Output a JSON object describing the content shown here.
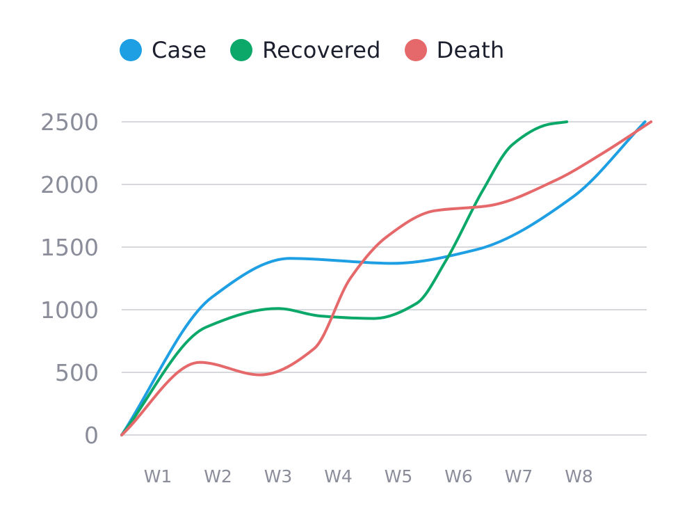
{
  "chart_data": {
    "type": "line",
    "title": "",
    "xlabel": "",
    "ylabel": "",
    "categories": [
      "W1",
      "W2",
      "W3",
      "W4",
      "W5",
      "W6",
      "W7",
      "W8"
    ],
    "ylim": [
      0,
      2500
    ],
    "yticks": [
      0,
      500,
      1000,
      1500,
      2000,
      2500
    ],
    "grid": true,
    "legend_position": "top",
    "smooth": true,
    "series": [
      {
        "name": "Case",
        "color": "#1e9fe3",
        "x": [
          0,
          1.5,
          2.8,
          4.5,
          5.9,
          7.5,
          8.7
        ],
        "y": [
          0,
          1100,
          1410,
          1370,
          1480,
          1900,
          2500
        ]
      },
      {
        "name": "Recovered",
        "color": "#0ba86a",
        "x": [
          0,
          1.4,
          2.6,
          3.3,
          4.2,
          4.9,
          5.4,
          6.0,
          6.5,
          7.1,
          7.4
        ],
        "y": [
          0,
          860,
          1010,
          950,
          930,
          1050,
          1400,
          1950,
          2320,
          2480,
          2500
        ]
      },
      {
        "name": "Death",
        "color": "#e5696a",
        "x": [
          0,
          1.3,
          2.3,
          3.2,
          3.8,
          4.4,
          5.2,
          6.1,
          7.2,
          8.0,
          8.8
        ],
        "y": [
          0,
          580,
          480,
          690,
          1250,
          1580,
          1790,
          1830,
          2030,
          2250,
          2500
        ]
      }
    ]
  }
}
